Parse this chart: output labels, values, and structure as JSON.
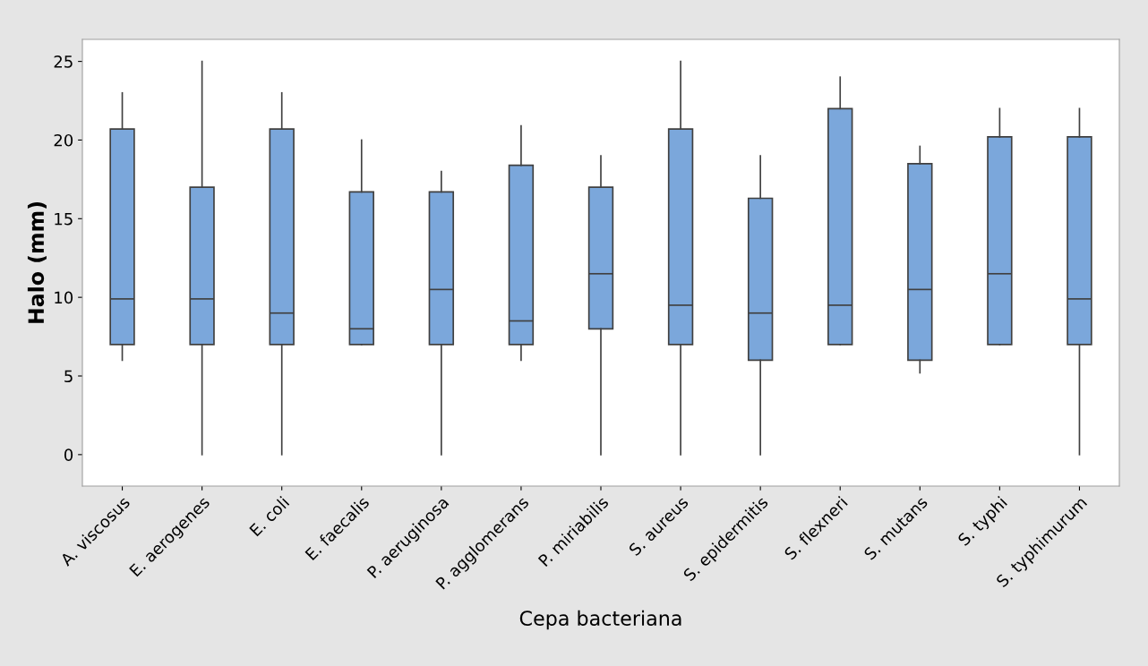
{
  "chart_data": {
    "type": "box",
    "xlabel": "Cepa bacteriana",
    "ylabel": "Halo (mm)",
    "categories": [
      "A. viscosus",
      "E. aerogenes",
      "E. coli",
      "E. faecalis",
      "P. aeruginosa",
      "P. agglomerans",
      "P. miriabilis",
      "S. aureus",
      "S. epidermitis",
      "S. flexneri",
      "S. mutans",
      "S. typhi",
      "S. typhimurum"
    ],
    "boxes": [
      {
        "low": 6,
        "q1": 7,
        "median": 9.9,
        "q3": 20.7,
        "high": 23
      },
      {
        "low": 0,
        "q1": 7,
        "median": 9.9,
        "q3": 17,
        "high": 25
      },
      {
        "low": 0,
        "q1": 7,
        "median": 9,
        "q3": 20.7,
        "high": 23
      },
      {
        "low": 7,
        "q1": 7,
        "median": 8,
        "q3": 16.7,
        "high": 20
      },
      {
        "low": 0,
        "q1": 7,
        "median": 10.5,
        "q3": 16.7,
        "high": 18
      },
      {
        "low": 6,
        "q1": 7,
        "median": 8.5,
        "q3": 18.4,
        "high": 20.9
      },
      {
        "low": 0,
        "q1": 8,
        "median": 11.5,
        "q3": 17,
        "high": 19
      },
      {
        "low": 0,
        "q1": 7,
        "median": 9.5,
        "q3": 20.7,
        "high": 25
      },
      {
        "low": 0,
        "q1": 6,
        "median": 9,
        "q3": 16.3,
        "high": 19
      },
      {
        "low": 7,
        "q1": 7,
        "median": 9.5,
        "q3": 22,
        "high": 24
      },
      {
        "low": 5.2,
        "q1": 6,
        "median": 10.5,
        "q3": 18.5,
        "high": 19.6
      },
      {
        "low": 7,
        "q1": 7,
        "median": 11.5,
        "q3": 20.2,
        "high": 22
      },
      {
        "low": 0,
        "q1": 7,
        "median": 9.9,
        "q3": 20.2,
        "high": 22
      }
    ],
    "color": "#7ba7db",
    "ylim": [
      -2,
      26.4
    ],
    "yticks": [
      0,
      5,
      10,
      15,
      20,
      25
    ],
    "grid": false
  }
}
